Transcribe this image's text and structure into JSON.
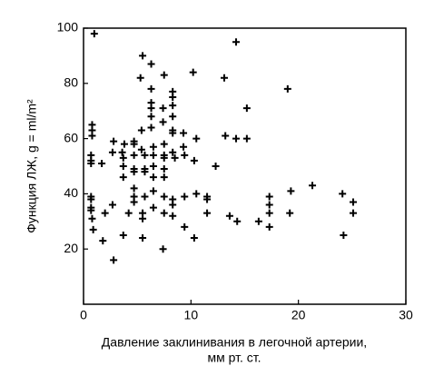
{
  "chart_data": {
    "type": "scatter",
    "xlabel": [
      "Давление заклинивания в легочной артерии,",
      "мм рт. ст."
    ],
    "ylabel": "Функция ЛЖ, g = ml/m²",
    "color": "#000000",
    "xlim": [
      0,
      30
    ],
    "ylim": [
      0,
      100
    ],
    "xticks": [
      0,
      10,
      20,
      30
    ],
    "yticks": [
      20,
      40,
      60,
      80,
      100
    ],
    "x": [
      1.0,
      5.5,
      6.3,
      5.3,
      7.5,
      6.3,
      10.2,
      14.2,
      13.1,
      15.2,
      19,
      8.3,
      8.3,
      8.3,
      8.3,
      8.3,
      8.3,
      6.3,
      6.3,
      6.3,
      7.4,
      7.4,
      6.3,
      5.4,
      0.8,
      0.8,
      0.8,
      0.7,
      0.7,
      0.7,
      1.7,
      2.8,
      3.8,
      4.7,
      4.7,
      5.4,
      6.5,
      7.5,
      8.3,
      9.3,
      9.3,
      10.5,
      10.3,
      12.3,
      13.2,
      14.2,
      15.2,
      2.7,
      3.6,
      3.7,
      3.7,
      4.7,
      4.7,
      5.7,
      5.7,
      6.5,
      6.5,
      7.5,
      7.5,
      7.5,
      8.5,
      9.4,
      3.7,
      4.7,
      5.7,
      6.5,
      7.5,
      0.7,
      0.7,
      0.7,
      0.7,
      0.8,
      2.7,
      4.7,
      4.7,
      4.7,
      5.7,
      6.5,
      7.5,
      8.3,
      8.3,
      9.4,
      10.5,
      11.5,
      11.5,
      2,
      4.2,
      5.5,
      5.5,
      6.5,
      7.5,
      8.3,
      9.4,
      11.5,
      17.3,
      17.3,
      17.3,
      17.3,
      19.3,
      21.3,
      24.1,
      25.1,
      25.1,
      19.2,
      13.6,
      14.3,
      16.3,
      0.9,
      1.8,
      3.7,
      5.5,
      7.4,
      10.3,
      24.2,
      2.8
    ],
    "values": [
      98,
      90,
      87,
      82,
      83,
      78,
      84,
      95,
      82,
      71,
      78,
      77,
      75,
      72,
      68,
      63,
      62,
      73,
      71,
      68,
      71,
      66,
      64,
      63,
      65,
      63,
      61,
      54,
      52,
      51,
      51,
      59,
      58,
      59,
      58,
      56,
      57,
      58,
      55,
      62,
      57,
      60,
      52,
      50,
      61,
      60,
      60,
      55,
      55,
      53,
      50,
      54,
      49,
      54,
      49,
      54,
      50,
      54,
      53,
      49,
      53,
      54,
      46,
      48,
      48,
      46,
      46,
      39,
      38,
      35,
      34,
      31,
      36,
      42,
      39,
      37,
      39,
      41,
      39,
      38,
      36,
      39,
      40,
      39,
      38,
      33,
      33,
      33,
      31,
      35,
      33,
      32,
      28,
      33,
      39,
      36,
      33,
      28,
      41,
      43,
      40,
      37,
      33,
      33,
      32,
      30,
      30,
      27,
      23,
      25,
      24,
      20,
      24,
      25,
      16
    ]
  }
}
